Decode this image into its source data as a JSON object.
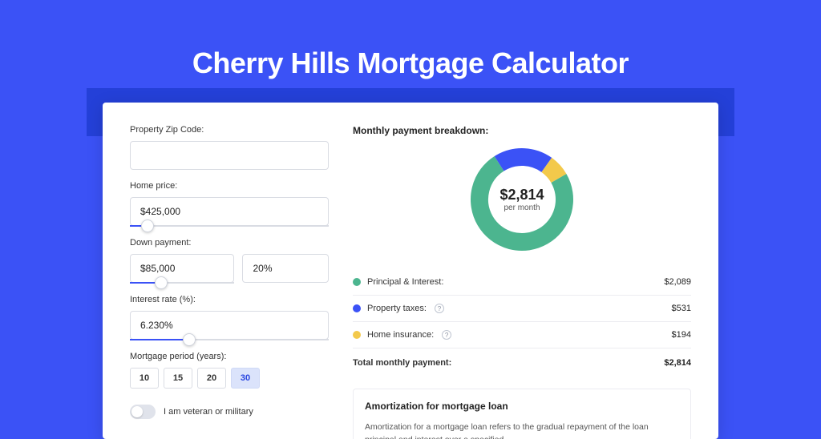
{
  "page": {
    "title": "Cherry Hills Mortgage Calculator",
    "background_color": "#3b52f6",
    "band_color": "#2440d8",
    "card_color": "#ffffff"
  },
  "form": {
    "zip_label": "Property Zip Code:",
    "zip_value": "",
    "home_price_label": "Home price:",
    "home_price_value": "$425,000",
    "home_price_slider_pct": 9,
    "down_payment_label": "Down payment:",
    "down_payment_value": "$85,000",
    "down_payment_slider_pct": 30,
    "down_payment_pct_value": "20%",
    "interest_label": "Interest rate (%):",
    "interest_value": "6.230%",
    "interest_slider_pct": 30,
    "period_label": "Mortgage period (years):",
    "periods": [
      "10",
      "15",
      "20",
      "30"
    ],
    "period_active_index": 3,
    "veteran_label": "I am veteran or military",
    "veteran_on": false
  },
  "breakdown": {
    "title": "Monthly payment breakdown:",
    "center_value": "$2,814",
    "center_sub": "per month",
    "items": [
      {
        "label": "Principal & Interest:",
        "amount": "$2,089",
        "color": "#4cb58f",
        "info": false
      },
      {
        "label": "Property taxes:",
        "amount": "$531",
        "color": "#3b52f6",
        "info": true
      },
      {
        "label": "Home insurance:",
        "amount": "$194",
        "color": "#f3c94b",
        "info": true
      }
    ],
    "total_label": "Total monthly payment:",
    "total_amount": "$2,814",
    "chart": {
      "type": "donut",
      "background_color": "#ffffff",
      "segments": [
        {
          "value": 2089,
          "color": "#4cb58f"
        },
        {
          "value": 531,
          "color": "#3b52f6"
        },
        {
          "value": 194,
          "color": "#f3c94b"
        }
      ],
      "inner_radius_pct": 62,
      "stroke_width": 22,
      "start_angle_deg": -30
    }
  },
  "amortization": {
    "title": "Amortization for mortgage loan",
    "text": "Amortization for a mortgage loan refers to the gradual repayment of the loan principal and interest over a specified"
  }
}
